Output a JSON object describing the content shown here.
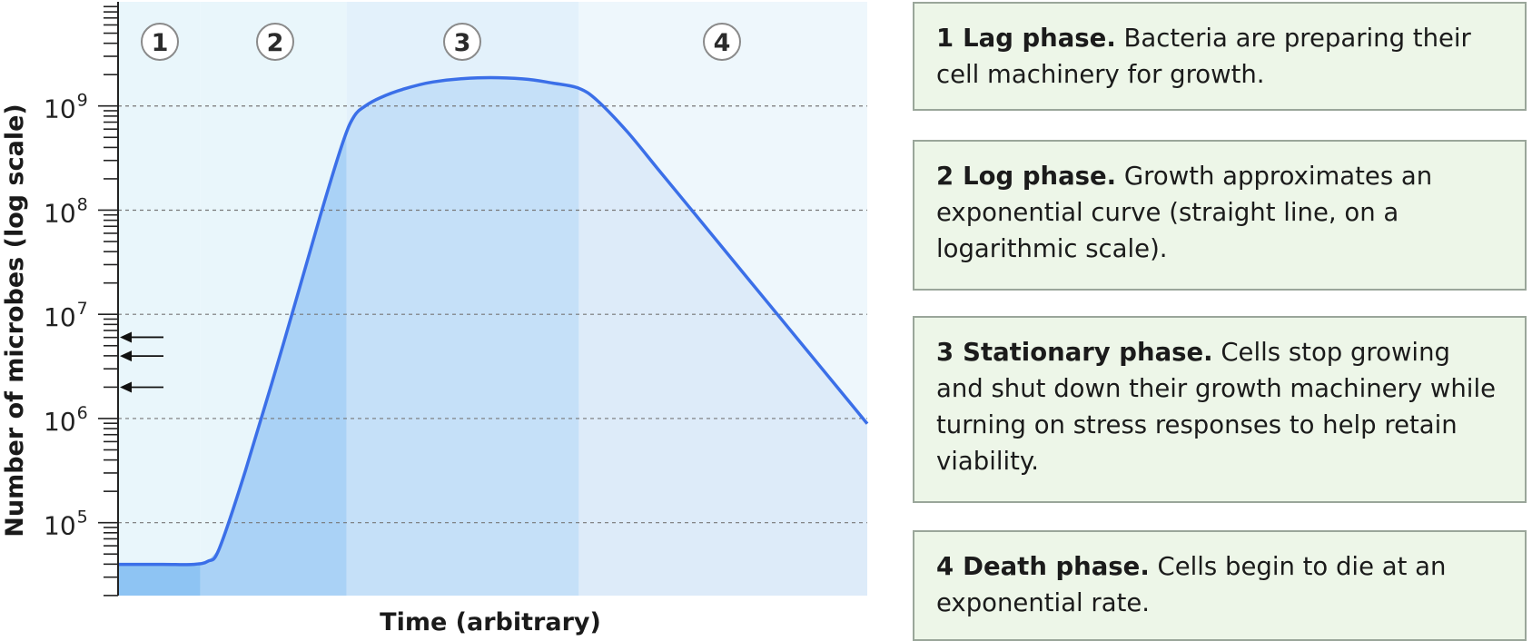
{
  "chart_data": {
    "type": "area",
    "xlabel": "Time (arbitrary)",
    "ylabel": "Number of microbes (log scale)",
    "yscale": "log",
    "ylim_log10": [
      4.3,
      10
    ],
    "xlim": [
      0,
      100
    ],
    "yticks": [
      {
        "base": "10",
        "exp": "5",
        "log10": 5
      },
      {
        "base": "10",
        "exp": "6",
        "log10": 6
      },
      {
        "base": "10",
        "exp": "7",
        "log10": 7
      },
      {
        "base": "10",
        "exp": "8",
        "log10": 8
      },
      {
        "base": "10",
        "exp": "9",
        "log10": 9
      }
    ],
    "grid": "horizontal-dashed",
    "phases": [
      {
        "label": "1",
        "x_start": 0,
        "x_end": 11
      },
      {
        "label": "2",
        "x_start": 11,
        "x_end": 30.5
      },
      {
        "label": "3",
        "x_start": 30.5,
        "x_end": 61.5
      },
      {
        "label": "4",
        "x_start": 61.5,
        "x_end": 100
      }
    ],
    "curve": {
      "x": [
        0,
        6,
        10,
        12,
        13.5,
        17,
        22,
        27,
        30,
        31.5,
        33,
        35,
        38,
        42,
        48,
        54,
        58,
        61.5,
        64,
        68,
        72,
        76,
        80,
        84,
        88,
        92,
        96,
        100
      ],
      "log10": [
        4.6,
        4.6,
        4.6,
        4.63,
        4.75,
        5.5,
        6.7,
        7.95,
        8.65,
        8.9,
        9.0,
        9.08,
        9.16,
        9.23,
        9.27,
        9.26,
        9.22,
        9.17,
        9.05,
        8.75,
        8.4,
        8.05,
        7.7,
        7.35,
        7.0,
        6.65,
        6.3,
        5.95
      ]
    },
    "arrows_log10": [
      6.78,
      6.6,
      6.3
    ]
  },
  "panels": [
    {
      "num": "1",
      "title": "Lag phase.",
      "text": "Bacteria are preparing their cell machinery for growth."
    },
    {
      "num": "2",
      "title": "Log phase.",
      "text": "Growth approximates an exponential curve (straight line, on a logarithmic scale)."
    },
    {
      "num": "3",
      "title": "Stationary phase.",
      "text": "Cells stop growing and shut down their growth machinery while turning on stress responses to help retain viability."
    },
    {
      "num": "4",
      "title": "Death phase.",
      "text": "Cells begin to die at an exponential rate."
    }
  ],
  "colors": {
    "lag_bg": "#e9f6fb",
    "lag_fill": "#8ec4f3",
    "log_fill": "#aad2f6",
    "stationary_fill": "#c5e0f8",
    "stationary_bg": "#e3f1fb",
    "death_fill": "#ddebf9",
    "death_bg": "#eef7fc",
    "curve": "#3b6fe8",
    "panel_bg": "#edf6e8",
    "panel_border": "#9aa69a"
  }
}
